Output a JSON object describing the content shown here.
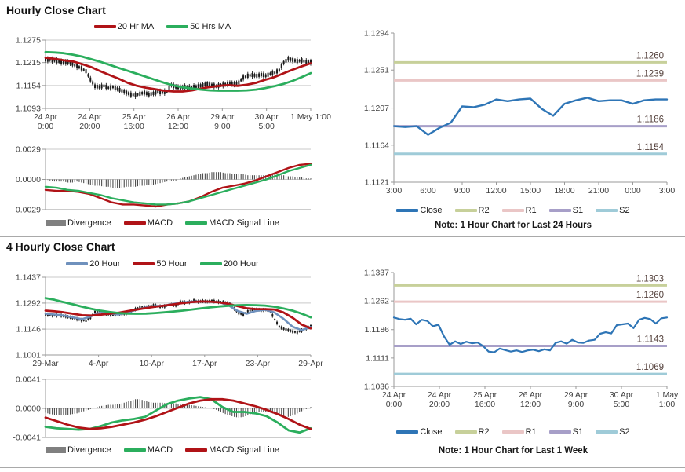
{
  "sections": {
    "hourly": {
      "title": "Hourly Close Chart",
      "note": "Note: 1 Hour Chart for Last 24 Hours"
    },
    "fourhourly": {
      "title": "4 Hourly Close Chart",
      "note": "Note: 1 Hour Chart for Last 1 Week"
    }
  },
  "colors": {
    "red": "#B01317",
    "green": "#2BAE5D",
    "blue": "#2E75B6",
    "blue_gray": "#6F91BD",
    "olive": "#C7D09A",
    "pink": "#EAC6C6",
    "purple": "#A79FC8",
    "light_blue": "#9FCBD8",
    "divergence": "#4D4D4D",
    "divergence_legend": "#808080",
    "grid": "#C9C9C9",
    "axis": "#9A9A9A",
    "candle": "#1A1A1A"
  },
  "chart_data": [
    {
      "id": "hp",
      "type": "candlestick",
      "title": "Hourly Close Chart",
      "ylim": [
        1.1093,
        1.1275
      ],
      "yticks": [
        1.1275,
        1.1215,
        1.1154,
        1.1093
      ],
      "xlabels": [
        [
          "24 Apr",
          "0:00"
        ],
        [
          "24 Apr",
          "20:00"
        ],
        [
          "25 Apr",
          "16:00"
        ],
        [
          "26 Apr",
          "12:00"
        ],
        [
          "29 Apr",
          "9:00"
        ],
        [
          "30 Apr",
          "5:00"
        ],
        "1 May 1:00"
      ],
      "candle_amp": 0.001,
      "candles": [
        1.1222,
        1.1223,
        1.122,
        1.1218,
        1.1215,
        1.1216,
        1.1212,
        1.1205,
        1.12,
        1.1192,
        1.117,
        1.1152,
        1.115,
        1.1153,
        1.1148,
        1.115,
        1.1145,
        1.114,
        1.1135,
        1.113,
        1.1128,
        1.1132,
        1.1135,
        1.113,
        1.1133,
        1.1137,
        1.1135,
        1.1138,
        1.1155,
        1.115,
        1.1148,
        1.115,
        1.1148,
        1.115,
        1.1152,
        1.1155,
        1.1158,
        1.1155,
        1.1152,
        1.1155,
        1.1157,
        1.116,
        1.1158,
        1.1162,
        1.1175,
        1.118,
        1.1182,
        1.118,
        1.1183,
        1.118,
        1.1185,
        1.1188,
        1.1195,
        1.1215,
        1.1225,
        1.1222,
        1.1219,
        1.1221,
        1.1217,
        1.1216
      ],
      "series": [
        {
          "name": "20 Hr MA",
          "color": "#B01317",
          "width": 2.8,
          "values": [
            1.1228,
            1.1225,
            1.1221,
            1.1218,
            1.1211,
            1.1203,
            1.1192,
            1.1182,
            1.1172,
            1.1161,
            1.1153,
            1.1148,
            1.1144,
            1.114,
            1.1138,
            1.1138,
            1.1141,
            1.1146,
            1.115,
            1.1153,
            1.1155,
            1.1153,
            1.1156,
            1.1161,
            1.1169,
            1.1176,
            1.1186,
            1.1196,
            1.1205,
            1.1213
          ]
        },
        {
          "name": "50 Hrs MA",
          "color": "#2BAE5D",
          "width": 2.8,
          "values": [
            1.1243,
            1.1242,
            1.124,
            1.1236,
            1.1231,
            1.1224,
            1.1217,
            1.1209,
            1.1201,
            1.1193,
            1.1185,
            1.1177,
            1.1169,
            1.1161,
            1.1154,
            1.1149,
            1.1146,
            1.1143,
            1.1141,
            1.114,
            1.114,
            1.114,
            1.1141,
            1.1143,
            1.1147,
            1.1152,
            1.1158,
            1.1166,
            1.1176,
            1.1187
          ]
        }
      ],
      "legend": [
        {
          "label": "20 Hr MA",
          "color": "#B01317",
          "swatch": "line"
        },
        {
          "label": "50 Hrs MA",
          "color": "#2BAE5D",
          "swatch": "line"
        }
      ]
    },
    {
      "id": "hm",
      "type": "bar+line",
      "title": "Hourly MACD",
      "ylim": [
        -0.0029,
        0.0029
      ],
      "yticks": [
        0.0029,
        0.0,
        -0.0029
      ],
      "xlabels": [],
      "bars": [
        0.0,
        -0.0001,
        -0.0002,
        -0.0002,
        -0.0002,
        -0.0003,
        -0.0003,
        -0.0002,
        -0.0003,
        -0.0004,
        -0.0005,
        -0.0006,
        -0.0006,
        -0.0007,
        -0.0007,
        -0.0008,
        -0.0008,
        -0.0008,
        -0.0007,
        -0.0007,
        -0.0007,
        -0.0006,
        -0.0006,
        -0.0005,
        -0.0005,
        -0.0004,
        -0.0003,
        -0.0002,
        -0.0001,
        -0.0001,
        0.0001,
        0.0002,
        0.0003,
        0.0004,
        0.0005,
        0.0006,
        0.0006,
        0.0007,
        0.0007,
        0.0007,
        0.0006,
        0.0006,
        0.0005,
        0.0005,
        0.0005,
        0.0004,
        0.0004,
        0.0004,
        0.0004,
        0.0004,
        0.0005,
        0.0005,
        0.0004,
        0.0004,
        0.0003,
        0.0003,
        0.0002,
        0.0002,
        0.0001,
        0.0001
      ],
      "series": [
        {
          "name": "MACD",
          "color": "#B01317",
          "width": 2.4,
          "values": [
            -0.001,
            -0.0011,
            -0.0011,
            -0.0012,
            -0.0014,
            -0.0018,
            -0.0022,
            -0.0024,
            -0.0024,
            -0.0025,
            -0.0026,
            -0.0024,
            -0.0023,
            -0.0021,
            -0.0017,
            -0.0012,
            -0.0008,
            -0.0006,
            -0.0004,
            -0.0001,
            0.0003,
            0.0007,
            0.0011,
            0.0014,
            0.0015
          ]
        },
        {
          "name": "MACD Signal Line",
          "color": "#2BAE5D",
          "width": 2.4,
          "values": [
            -0.0007,
            -0.0008,
            -0.001,
            -0.0011,
            -0.0013,
            -0.0015,
            -0.0018,
            -0.002,
            -0.0022,
            -0.0023,
            -0.0024,
            -0.0024,
            -0.0023,
            -0.0021,
            -0.0018,
            -0.0015,
            -0.0012,
            -0.0009,
            -0.0006,
            -0.0003,
            0.0,
            0.0004,
            0.0008,
            0.0011,
            0.0014
          ]
        }
      ],
      "legend": [
        {
          "label": "Divergence",
          "color": "#808080",
          "swatch": "bar"
        },
        {
          "label": "MACD",
          "color": "#B01317",
          "swatch": "line"
        },
        {
          "label": "MACD Signal Line",
          "color": "#2BAE5D",
          "swatch": "line"
        }
      ]
    },
    {
      "id": "hsr",
      "type": "line",
      "title": "1 Hour Chart for Last 24 Hours",
      "ylim": [
        1.1121,
        1.1294
      ],
      "yticks": [
        1.1294,
        1.1251,
        1.1207,
        1.1164,
        1.1121
      ],
      "xlabels": [
        "3:00",
        "6:00",
        "9:00",
        "12:00",
        "15:00",
        "18:00",
        "21:00",
        "0:00",
        "3:00"
      ],
      "hlines": [
        {
          "name": "R2",
          "value": 1.126,
          "label": "1.1260",
          "color": "#C7D09A"
        },
        {
          "name": "R1",
          "value": 1.1239,
          "label": "1.1239",
          "color": "#EAC6C6"
        },
        {
          "name": "S1",
          "value": 1.1186,
          "label": "1.1186",
          "color": "#A79FC8"
        },
        {
          "name": "S2",
          "value": 1.1154,
          "label": "1.1154",
          "color": "#9FCBD8"
        }
      ],
      "series": [
        {
          "name": "Close",
          "color": "#2E75B6",
          "width": 2.4,
          "values": [
            1.1186,
            1.1185,
            1.1186,
            1.1176,
            1.1184,
            1.119,
            1.1209,
            1.1208,
            1.1211,
            1.1217,
            1.1215,
            1.1217,
            1.1218,
            1.1206,
            1.1198,
            1.1212,
            1.1216,
            1.1219,
            1.1215,
            1.1216,
            1.1216,
            1.1212,
            1.1216,
            1.1217,
            1.1217
          ]
        }
      ],
      "legend": [
        {
          "label": "Close",
          "color": "#2E75B6",
          "swatch": "line"
        },
        {
          "label": "R2",
          "color": "#C7D09A",
          "swatch": "line"
        },
        {
          "label": "R1",
          "color": "#EAC6C6",
          "swatch": "line"
        },
        {
          "label": "S1",
          "color": "#A79FC8",
          "swatch": "line"
        },
        {
          "label": "S2",
          "color": "#9FCBD8",
          "swatch": "line"
        }
      ]
    },
    {
      "id": "fp",
      "type": "candlestick",
      "title": "4 Hourly Close Chart",
      "ylim": [
        1.1001,
        1.1437
      ],
      "yticks": [
        1.1437,
        1.1292,
        1.1146,
        1.1001
      ],
      "xlabels": [
        "29-Mar",
        "4-Apr",
        "10-Apr",
        "17-Apr",
        "23-Apr",
        "29-Apr"
      ],
      "candle_amp": 0.0013,
      "candles": [
        1.1228,
        1.1226,
        1.1222,
        1.1224,
        1.122,
        1.1215,
        1.121,
        1.1202,
        1.1196,
        1.1193,
        1.121,
        1.1242,
        1.1248,
        1.1235,
        1.1228,
        1.1225,
        1.1232,
        1.123,
        1.1235,
        1.1245,
        1.1258,
        1.127,
        1.1268,
        1.1272,
        1.128,
        1.1275,
        1.127,
        1.1278,
        1.1285,
        1.1278,
        1.13,
        1.1295,
        1.1298,
        1.1306,
        1.13,
        1.1303,
        1.13,
        1.1305,
        1.13,
        1.1298,
        1.1295,
        1.1288,
        1.126,
        1.1235,
        1.1228,
        1.1245,
        1.1255,
        1.1258,
        1.1252,
        1.1255,
        1.1245,
        1.12,
        1.116,
        1.1148,
        1.114,
        1.1132,
        1.1128,
        1.1138,
        1.115,
        1.1162
      ],
      "series": [
        {
          "name": "20 Hour",
          "color": "#6F91BD",
          "width": 2.6,
          "values": [
            1.1232,
            1.1228,
            1.1222,
            1.1212,
            1.1202,
            1.1218,
            1.124,
            1.1232,
            1.1228,
            1.124,
            1.1255,
            1.1268,
            1.1275,
            1.1278,
            1.1288,
            1.1296,
            1.13,
            1.13,
            1.1299,
            1.1297,
            1.128,
            1.1248,
            1.1232,
            1.1248,
            1.1255,
            1.124,
            1.1205,
            1.116,
            1.114,
            1.1158
          ]
        },
        {
          "name": "50 Hour",
          "color": "#B01317",
          "width": 2.8,
          "values": [
            1.125,
            1.1246,
            1.124,
            1.1232,
            1.1224,
            1.1222,
            1.1227,
            1.1232,
            1.1238,
            1.1247,
            1.1256,
            1.1264,
            1.1272,
            1.1278,
            1.1285,
            1.1292,
            1.1298,
            1.1301,
            1.13,
            1.1296,
            1.1288,
            1.1275,
            1.1263,
            1.1258,
            1.1258,
            1.1256,
            1.124,
            1.121,
            1.1172,
            1.115
          ]
        },
        {
          "name": "200 Hour",
          "color": "#2BAE5D",
          "width": 2.8,
          "values": [
            1.132,
            1.131,
            1.1297,
            1.1285,
            1.1272,
            1.126,
            1.125,
            1.1242,
            1.1236,
            1.1233,
            1.1232,
            1.1233,
            1.1236,
            1.124,
            1.1245,
            1.125,
            1.1256,
            1.1262,
            1.1268,
            1.1273,
            1.1277,
            1.128,
            1.1281,
            1.128,
            1.1278,
            1.1272,
            1.1262,
            1.125,
            1.1233,
            1.1212
          ]
        }
      ],
      "legend": [
        {
          "label": "20 Hour",
          "color": "#6F91BD",
          "swatch": "line"
        },
        {
          "label": "50 Hour",
          "color": "#B01317",
          "swatch": "line"
        },
        {
          "label": "200 Hour",
          "color": "#2BAE5D",
          "swatch": "line"
        }
      ]
    },
    {
      "id": "fm",
      "type": "bar+line",
      "title": "4 Hourly MACD",
      "ylim": [
        -0.0041,
        0.0041
      ],
      "yticks": [
        0.0041,
        0.0,
        -0.0041
      ],
      "xlabels": [],
      "bars": [
        -0.0006,
        -0.0008,
        -0.0009,
        -0.001,
        -0.001,
        -0.0009,
        -0.0008,
        -0.0007,
        -0.0005,
        -0.0003,
        -0.0001,
        0.0001,
        0.0003,
        0.0004,
        0.0005,
        0.0005,
        0.0006,
        0.0007,
        0.0009,
        0.0011,
        0.0013,
        0.0013,
        0.0011,
        0.0009,
        0.0008,
        0.0008,
        0.0008,
        0.0007,
        0.0007,
        0.0007,
        0.0006,
        0.0006,
        0.0005,
        0.0004,
        0.0003,
        0.0002,
        0.0001,
        0.0,
        -0.0002,
        -0.0005,
        -0.0008,
        -0.001,
        -0.0012,
        -0.0013,
        -0.0012,
        -0.001,
        -0.0008,
        -0.0006,
        -0.0005,
        -0.0005,
        -0.0006,
        -0.0008,
        -0.001,
        -0.0012,
        -0.0012,
        -0.001,
        -0.0007,
        -0.0004,
        -0.0001,
        0.0002
      ],
      "series": [
        {
          "name": "MACD",
          "color": "#2BAE5D",
          "width": 2.8,
          "values": [
            -0.0026,
            -0.0028,
            -0.0029,
            -0.003,
            -0.0029,
            -0.0025,
            -0.002,
            -0.0017,
            -0.0015,
            -0.0012,
            -0.0003,
            0.0006,
            0.0011,
            0.0014,
            0.0016,
            0.0013,
            0.0002,
            -0.0005,
            -0.0005,
            -0.0007,
            -0.0011,
            -0.002,
            -0.0031,
            -0.0034,
            -0.0028
          ]
        },
        {
          "name": "MACD Signal Line",
          "color": "#B01317",
          "width": 2.8,
          "values": [
            -0.0013,
            -0.0018,
            -0.0023,
            -0.0027,
            -0.0029,
            -0.0028,
            -0.0026,
            -0.0023,
            -0.002,
            -0.0016,
            -0.0011,
            -0.0005,
            0.0001,
            0.0007,
            0.0011,
            0.0013,
            0.0013,
            0.0011,
            0.0007,
            0.0003,
            -0.0002,
            -0.0008,
            -0.0015,
            -0.0023,
            -0.0029
          ]
        }
      ],
      "legend": [
        {
          "label": "Divergence",
          "color": "#808080",
          "swatch": "bar"
        },
        {
          "label": "MACD",
          "color": "#2BAE5D",
          "swatch": "line"
        },
        {
          "label": "MACD Signal Line",
          "color": "#B01317",
          "swatch": "line"
        }
      ]
    },
    {
      "id": "fsr",
      "type": "line",
      "title": "1 Hour Chart for Last 1 Week",
      "ylim": [
        1.1036,
        1.1337
      ],
      "yticks": [
        1.1337,
        1.1262,
        1.1186,
        1.1111,
        1.1036
      ],
      "xlabels": [
        [
          "24 Apr",
          "0:00"
        ],
        [
          "24 Apr",
          "20:00"
        ],
        [
          "25 Apr",
          "16:00"
        ],
        [
          "26 Apr",
          "12:00"
        ],
        [
          "29 Apr",
          "9:00"
        ],
        [
          "30 Apr",
          "5:00"
        ],
        [
          "1 May",
          "1:00"
        ]
      ],
      "hlines": [
        {
          "name": "R2",
          "value": 1.1303,
          "label": "1.1303",
          "color": "#C7D09A"
        },
        {
          "name": "R1",
          "value": 1.126,
          "label": "1.1260",
          "color": "#EAC6C6"
        },
        {
          "name": "S1",
          "value": 1.1143,
          "label": "1.1143",
          "color": "#A79FC8"
        },
        {
          "name": "S2",
          "value": 1.1069,
          "label": "1.1069",
          "color": "#9FCBD8"
        }
      ],
      "series": [
        {
          "name": "Close",
          "color": "#2E75B6",
          "width": 2.2,
          "values": [
            1.1218,
            1.1214,
            1.1212,
            1.1215,
            1.12,
            1.1212,
            1.1209,
            1.1195,
            1.1199,
            1.1168,
            1.1146,
            1.1155,
            1.1148,
            1.1154,
            1.115,
            1.1152,
            1.1143,
            1.1128,
            1.1126,
            1.1136,
            1.1132,
            1.1128,
            1.1131,
            1.1127,
            1.1131,
            1.1133,
            1.1129,
            1.1134,
            1.1131,
            1.1151,
            1.1155,
            1.1149,
            1.1159,
            1.1152,
            1.1151,
            1.1157,
            1.1159,
            1.1175,
            1.1179,
            1.1176,
            1.1198,
            1.12,
            1.1202,
            1.119,
            1.1212,
            1.1217,
            1.1214,
            1.1202,
            1.1216,
            1.1218
          ]
        }
      ],
      "legend": [
        {
          "label": "Close",
          "color": "#2E75B6",
          "swatch": "line"
        },
        {
          "label": "R2",
          "color": "#C7D09A",
          "swatch": "line"
        },
        {
          "label": "R1",
          "color": "#EAC6C6",
          "swatch": "line"
        },
        {
          "label": "S1",
          "color": "#A79FC8",
          "swatch": "line"
        },
        {
          "label": "S2",
          "color": "#9FCBD8",
          "swatch": "line"
        }
      ]
    }
  ]
}
